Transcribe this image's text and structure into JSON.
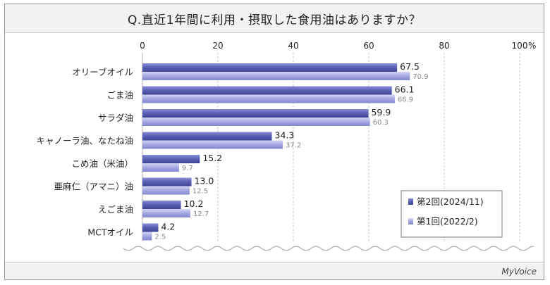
{
  "title": "Q.直近1年間に利用・摂取した食用油はありますか？",
  "brand": "MyVoice",
  "colors": {
    "series_now": "#5c62b8",
    "series_prev": "#a4a8e2",
    "grid": "#bdbdbd",
    "frame": "#9a9a9a"
  },
  "chart_data": {
    "type": "bar",
    "orientation": "horizontal",
    "categories": [
      "オリーブオイル",
      "ごま油",
      "サラダ油",
      "キャノーラ油、なたね油",
      "こめ油（米油）",
      "亜麻仁（アマニ）油",
      "えごま油",
      "MCTオイル"
    ],
    "series": [
      {
        "name": "第2回(2024/11)",
        "values": [
          67.5,
          66.1,
          59.9,
          34.3,
          15.2,
          13.0,
          10.2,
          4.2
        ]
      },
      {
        "name": "第1回(2022/2)",
        "values": [
          70.9,
          66.9,
          60.3,
          37.2,
          9.7,
          12.5,
          12.7,
          2.5
        ]
      }
    ],
    "value_labels": {
      "第2回(2024/11)": [
        "67.5",
        "66.1",
        "59.9",
        "34.3",
        "15.2",
        "13.0",
        "10.2",
        "4.2"
      ],
      "第1回(2022/2)": [
        "70.9",
        "66.9",
        "60.3",
        "37.2",
        "9.7",
        "12.5",
        "12.7",
        "2.5"
      ]
    },
    "xlim": [
      0,
      100
    ],
    "xticks": [
      "0",
      "20",
      "40",
      "60",
      "80",
      "100"
    ],
    "xunit": "%",
    "grid": true,
    "legend_position": "bottom-right"
  }
}
